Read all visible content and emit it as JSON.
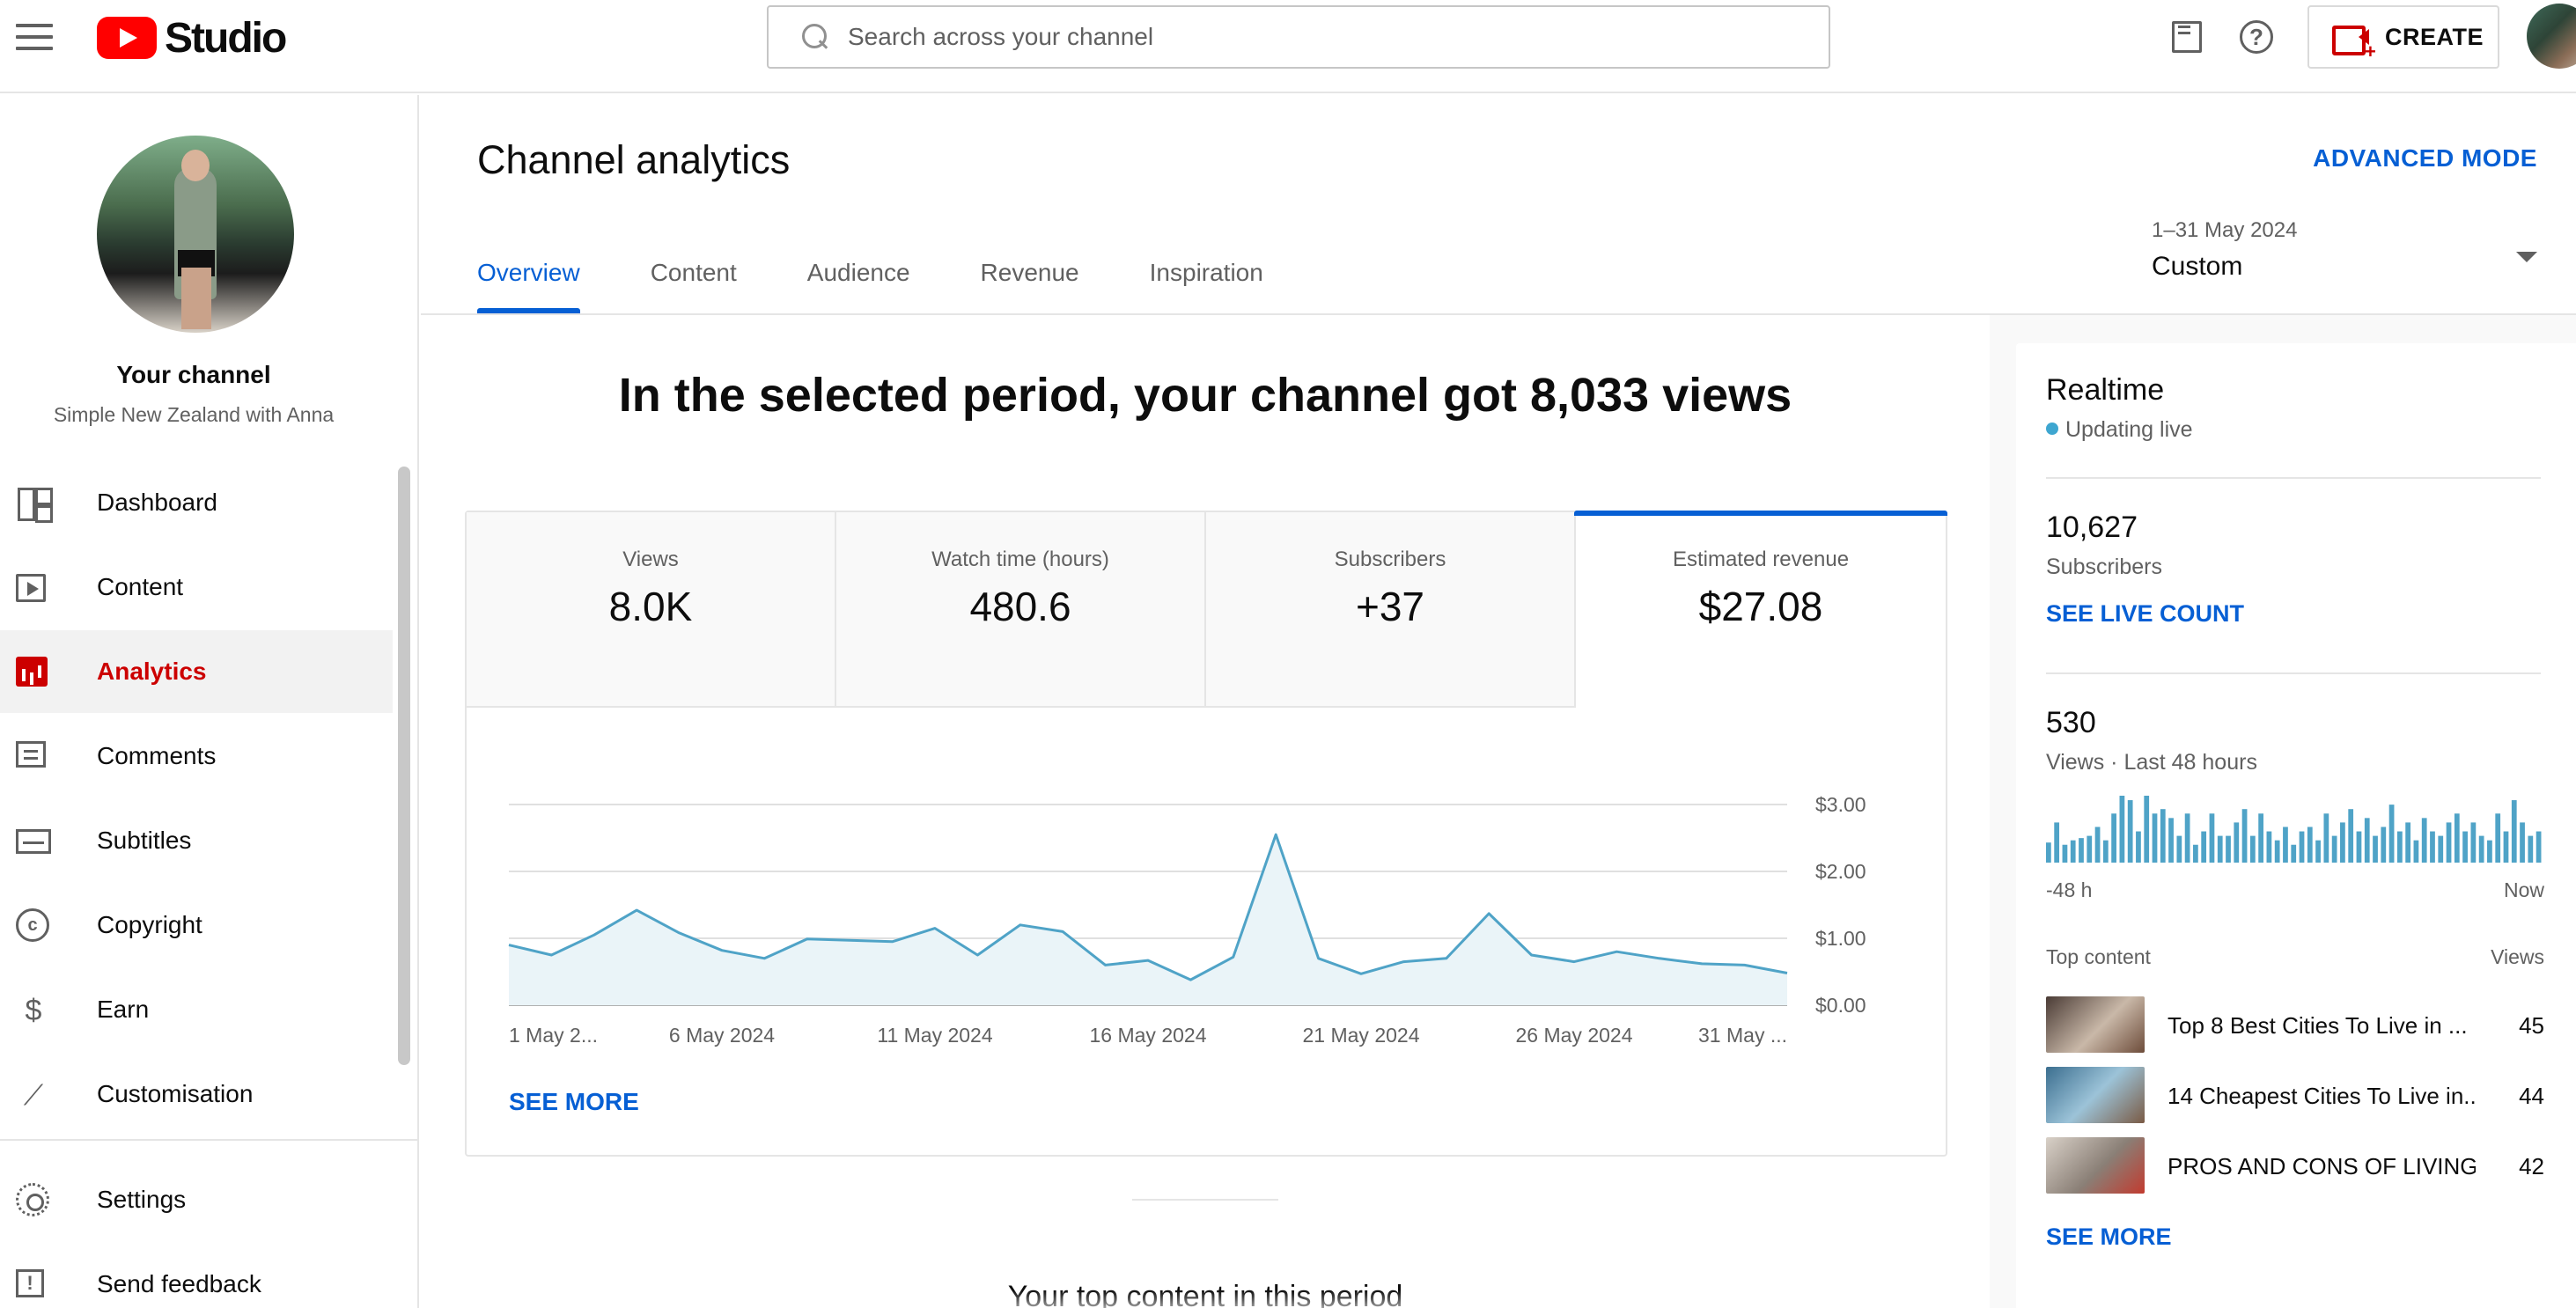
{
  "app": {
    "logo_text": "Studio"
  },
  "search": {
    "placeholder": "Search across your channel"
  },
  "header": {
    "create_label": "CREATE"
  },
  "sidebar": {
    "channel_title": "Your channel",
    "channel_name": "Simple New Zealand with Anna",
    "items": [
      {
        "label": "Dashboard",
        "icon": "dashboard-icon"
      },
      {
        "label": "Content",
        "icon": "content-icon"
      },
      {
        "label": "Analytics",
        "icon": "analytics-icon",
        "active": true
      },
      {
        "label": "Comments",
        "icon": "comments-icon"
      },
      {
        "label": "Subtitles",
        "icon": "subtitles-icon"
      },
      {
        "label": "Copyright",
        "icon": "copyright-icon"
      },
      {
        "label": "Earn",
        "icon": "earn-icon"
      },
      {
        "label": "Customisation",
        "icon": "customisation-icon"
      }
    ],
    "bottom_items": [
      {
        "label": "Settings",
        "icon": "settings-icon"
      },
      {
        "label": "Send feedback",
        "icon": "feedback-icon"
      }
    ]
  },
  "page": {
    "title": "Channel analytics",
    "advanced_mode": "ADVANCED MODE",
    "tabs": [
      "Overview",
      "Content",
      "Audience",
      "Revenue",
      "Inspiration"
    ],
    "active_tab": "Overview",
    "date_range": {
      "sub": "1–31 May 2024",
      "value": "Custom"
    },
    "headline": "In the selected period, your channel got 8,033 views",
    "metrics": [
      {
        "label": "Views",
        "value": "8.0K"
      },
      {
        "label": "Watch time (hours)",
        "value": "480.6"
      },
      {
        "label": "Subscribers",
        "value": "+37"
      },
      {
        "label": "Estimated revenue",
        "value": "$27.08",
        "active": true
      }
    ],
    "see_more": "SEE MORE",
    "top_content_title": "Your top content in this period"
  },
  "chart_data": {
    "type": "area",
    "series": [
      {
        "values": [
          0.9,
          0.75,
          1.05,
          1.42,
          1.08,
          0.82,
          0.7,
          0.99,
          0.97,
          0.95,
          1.15,
          0.75,
          1.2,
          1.1,
          0.6,
          0.67,
          0.38,
          0.72,
          2.55,
          0.7,
          0.47,
          0.65,
          0.7,
          1.37,
          0.75,
          0.65,
          0.8,
          0.7,
          0.62,
          0.6,
          0.48
        ]
      }
    ],
    "x_tick_labels": [
      "1 May 2...",
      "6 May 2024",
      "11 May 2024",
      "16 May 2024",
      "21 May 2024",
      "26 May 2024",
      "31 May ..."
    ],
    "y_tick_labels": [
      "$3.00",
      "$2.00",
      "$1.00",
      "$0.00"
    ],
    "ylim": [
      0,
      3
    ],
    "grid": true,
    "line_color": "#4fa3c7",
    "fill_color": "#eaf4f8"
  },
  "realtime": {
    "title": "Realtime",
    "status": "Updating live",
    "subscribers_value": "10,627",
    "subscribers_label": "Subscribers",
    "see_live_count": "SEE LIVE COUNT",
    "views_value": "530",
    "views_label": "Views · Last 48 hours",
    "bar_values": [
      9,
      18,
      8,
      10,
      11,
      12,
      16,
      10,
      22,
      30,
      28,
      14,
      30,
      22,
      24,
      20,
      12,
      22,
      8,
      14,
      22,
      12,
      12,
      18,
      24,
      12,
      22,
      14,
      10,
      16,
      8,
      14,
      16,
      10,
      22,
      12,
      18,
      24,
      14,
      20,
      12,
      16,
      26,
      14,
      18,
      10,
      20,
      14,
      12,
      18,
      22,
      14,
      18,
      12,
      10,
      22,
      14,
      28,
      18,
      12,
      14
    ],
    "bar_color": "#4fa3c7",
    "axis_start": "-48 h",
    "axis_end": "Now",
    "top_content_label": "Top content",
    "views_col_label": "Views",
    "items": [
      {
        "title": "Top 8 Best Cities To Live in ...",
        "views": "45"
      },
      {
        "title": "14 Cheapest Cities To Live in...",
        "views": "44"
      },
      {
        "title": "PROS AND CONS OF LIVING ...",
        "views": "42"
      }
    ],
    "see_more": "SEE MORE"
  }
}
